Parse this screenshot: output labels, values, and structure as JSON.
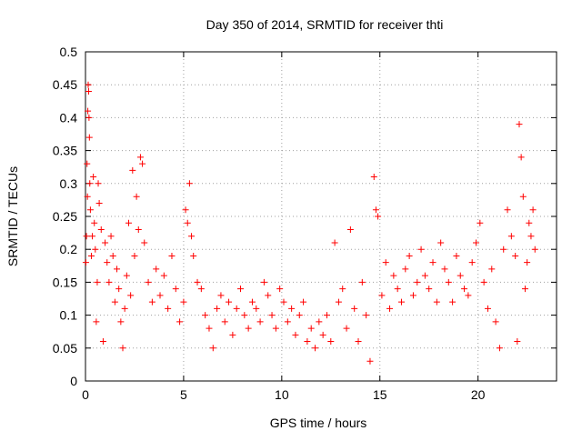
{
  "chart_data": {
    "type": "scatter",
    "title": "Day 350 of 2014, SRMTID for receiver thti",
    "xlabel": "GPS time / hours",
    "ylabel": "SRMTID / TECUs",
    "xlim": [
      0,
      24
    ],
    "ylim": [
      0,
      0.5
    ],
    "x_ticks": [
      0,
      5,
      10,
      15,
      20
    ],
    "x_tick_labels": [
      "0",
      "5",
      "10",
      "15",
      "20"
    ],
    "y_ticks": [
      0,
      0.05,
      0.1,
      0.15,
      0.2,
      0.25,
      0.3,
      0.35,
      0.4,
      0.45,
      0.5
    ],
    "y_tick_labels": [
      "0",
      "0.05",
      "0.1",
      "0.15",
      "0.2",
      "0.25",
      "0.3",
      "0.35",
      "0.4",
      "0.45",
      "0.5"
    ],
    "grid": true,
    "marker": "+",
    "color": "#ff0000",
    "series": [
      {
        "points": [
          [
            0.02,
            0.18
          ],
          [
            0.05,
            0.22
          ],
          [
            0.08,
            0.33
          ],
          [
            0.1,
            0.28
          ],
          [
            0.12,
            0.41
          ],
          [
            0.14,
            0.45
          ],
          [
            0.16,
            0.44
          ],
          [
            0.18,
            0.4
          ],
          [
            0.2,
            0.37
          ],
          [
            0.22,
            0.3
          ],
          [
            0.25,
            0.26
          ],
          [
            0.3,
            0.19
          ],
          [
            0.35,
            0.22
          ],
          [
            0.4,
            0.31
          ],
          [
            0.45,
            0.24
          ],
          [
            0.5,
            0.2
          ],
          [
            0.55,
            0.09
          ],
          [
            0.6,
            0.15
          ],
          [
            0.65,
            0.3
          ],
          [
            0.7,
            0.27
          ],
          [
            0.8,
            0.23
          ],
          [
            0.9,
            0.06
          ],
          [
            1.0,
            0.21
          ],
          [
            1.1,
            0.18
          ],
          [
            1.2,
            0.15
          ],
          [
            1.3,
            0.22
          ],
          [
            1.4,
            0.19
          ],
          [
            1.5,
            0.12
          ],
          [
            1.6,
            0.17
          ],
          [
            1.7,
            0.14
          ],
          [
            1.8,
            0.09
          ],
          [
            1.9,
            0.05
          ],
          [
            2.0,
            0.11
          ],
          [
            2.1,
            0.16
          ],
          [
            2.2,
            0.24
          ],
          [
            2.3,
            0.13
          ],
          [
            2.4,
            0.32
          ],
          [
            2.5,
            0.19
          ],
          [
            2.6,
            0.28
          ],
          [
            2.7,
            0.23
          ],
          [
            2.8,
            0.34
          ],
          [
            2.9,
            0.33
          ],
          [
            3.0,
            0.21
          ],
          [
            3.2,
            0.15
          ],
          [
            3.4,
            0.12
          ],
          [
            3.6,
            0.17
          ],
          [
            3.8,
            0.13
          ],
          [
            4.0,
            0.16
          ],
          [
            4.2,
            0.11
          ],
          [
            4.4,
            0.19
          ],
          [
            4.6,
            0.14
          ],
          [
            4.8,
            0.09
          ],
          [
            5.0,
            0.12
          ],
          [
            5.1,
            0.26
          ],
          [
            5.2,
            0.24
          ],
          [
            5.3,
            0.3
          ],
          [
            5.4,
            0.22
          ],
          [
            5.5,
            0.19
          ],
          [
            5.7,
            0.15
          ],
          [
            5.9,
            0.14
          ],
          [
            6.1,
            0.1
          ],
          [
            6.3,
            0.08
          ],
          [
            6.5,
            0.05
          ],
          [
            6.7,
            0.11
          ],
          [
            6.9,
            0.13
          ],
          [
            7.1,
            0.09
          ],
          [
            7.3,
            0.12
          ],
          [
            7.5,
            0.07
          ],
          [
            7.7,
            0.11
          ],
          [
            7.9,
            0.14
          ],
          [
            8.1,
            0.1
          ],
          [
            8.3,
            0.08
          ],
          [
            8.5,
            0.12
          ],
          [
            8.7,
            0.11
          ],
          [
            8.9,
            0.09
          ],
          [
            9.1,
            0.15
          ],
          [
            9.3,
            0.13
          ],
          [
            9.5,
            0.1
          ],
          [
            9.7,
            0.08
          ],
          [
            9.9,
            0.14
          ],
          [
            10.1,
            0.12
          ],
          [
            10.3,
            0.09
          ],
          [
            10.5,
            0.11
          ],
          [
            10.7,
            0.07
          ],
          [
            10.9,
            0.1
          ],
          [
            11.1,
            0.12
          ],
          [
            11.3,
            0.06
          ],
          [
            11.5,
            0.08
          ],
          [
            11.7,
            0.05
          ],
          [
            11.9,
            0.09
          ],
          [
            12.1,
            0.07
          ],
          [
            12.3,
            0.1
          ],
          [
            12.5,
            0.06
          ],
          [
            12.7,
            0.21
          ],
          [
            12.9,
            0.12
          ],
          [
            13.1,
            0.14
          ],
          [
            13.3,
            0.08
          ],
          [
            13.5,
            0.23
          ],
          [
            13.7,
            0.11
          ],
          [
            13.9,
            0.06
          ],
          [
            14.1,
            0.15
          ],
          [
            14.3,
            0.1
          ],
          [
            14.5,
            0.03
          ],
          [
            14.7,
            0.31
          ],
          [
            14.8,
            0.26
          ],
          [
            14.9,
            0.25
          ],
          [
            15.1,
            0.13
          ],
          [
            15.3,
            0.18
          ],
          [
            15.5,
            0.11
          ],
          [
            15.7,
            0.16
          ],
          [
            15.9,
            0.14
          ],
          [
            16.1,
            0.12
          ],
          [
            16.3,
            0.17
          ],
          [
            16.5,
            0.19
          ],
          [
            16.7,
            0.13
          ],
          [
            16.9,
            0.15
          ],
          [
            17.1,
            0.2
          ],
          [
            17.3,
            0.16
          ],
          [
            17.5,
            0.14
          ],
          [
            17.7,
            0.18
          ],
          [
            17.9,
            0.12
          ],
          [
            18.1,
            0.21
          ],
          [
            18.3,
            0.17
          ],
          [
            18.5,
            0.15
          ],
          [
            18.7,
            0.12
          ],
          [
            18.9,
            0.19
          ],
          [
            19.1,
            0.16
          ],
          [
            19.3,
            0.14
          ],
          [
            19.5,
            0.13
          ],
          [
            19.7,
            0.18
          ],
          [
            19.9,
            0.21
          ],
          [
            20.1,
            0.24
          ],
          [
            20.3,
            0.15
          ],
          [
            20.5,
            0.11
          ],
          [
            20.7,
            0.17
          ],
          [
            20.9,
            0.09
          ],
          [
            21.1,
            0.05
          ],
          [
            21.3,
            0.2
          ],
          [
            21.5,
            0.26
          ],
          [
            21.7,
            0.22
          ],
          [
            21.9,
            0.19
          ],
          [
            22.0,
            0.06
          ],
          [
            22.1,
            0.39
          ],
          [
            22.2,
            0.34
          ],
          [
            22.3,
            0.28
          ],
          [
            22.4,
            0.14
          ],
          [
            22.5,
            0.18
          ],
          [
            22.6,
            0.24
          ],
          [
            22.7,
            0.22
          ],
          [
            22.8,
            0.26
          ],
          [
            22.9,
            0.2
          ]
        ]
      }
    ]
  }
}
